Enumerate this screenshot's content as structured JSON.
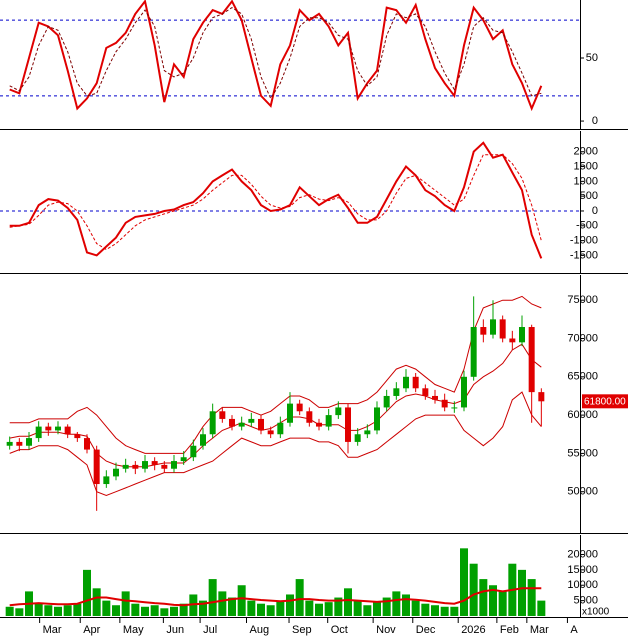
{
  "chart_data": [
    {
      "type": "line",
      "ylim": [
        -5.5,
        96
      ],
      "yticks": [
        0,
        50
      ],
      "reference_lines": [
        20,
        80
      ],
      "series": [
        {
          "color": "#e00000",
          "width": 2,
          "dash": false,
          "values": [
            25,
            22,
            50,
            78,
            75,
            68,
            40,
            10,
            18,
            30,
            58,
            62,
            70,
            85,
            95,
            60,
            15,
            45,
            35,
            65,
            78,
            88,
            85,
            95,
            80,
            50,
            20,
            12,
            45,
            60,
            88,
            80,
            85,
            75,
            60,
            70,
            18,
            30,
            40,
            90,
            88,
            78,
            92,
            65,
            42,
            30,
            20,
            60,
            90,
            80,
            65,
            72,
            45,
            30,
            10,
            28
          ]
        },
        {
          "color": "#800000",
          "width": 1,
          "dash": true,
          "values": [
            28,
            24,
            35,
            60,
            75,
            72,
            55,
            30,
            20,
            22,
            40,
            55,
            65,
            78,
            88,
            75,
            40,
            35,
            38,
            50,
            70,
            82,
            85,
            90,
            85,
            65,
            35,
            18,
            30,
            50,
            75,
            82,
            82,
            78,
            68,
            65,
            40,
            28,
            35,
            68,
            85,
            82,
            85,
            75,
            55,
            38,
            25,
            45,
            75,
            82,
            72,
            70,
            55,
            38,
            20,
            22
          ]
        }
      ]
    },
    {
      "type": "line",
      "ylim": [
        -2060,
        2700
      ],
      "yticks": [
        -1500,
        -1000,
        -500,
        0,
        500,
        1000,
        1500,
        2000
      ],
      "reference_lines": [
        0
      ],
      "series": [
        {
          "color": "#e00000",
          "width": 2,
          "dash": false,
          "values": [
            -500,
            -500,
            -400,
            200,
            400,
            350,
            100,
            -300,
            -1400,
            -1500,
            -1200,
            -900,
            -400,
            -200,
            -150,
            -100,
            0,
            50,
            200,
            300,
            600,
            1000,
            1200,
            1400,
            1000,
            700,
            200,
            0,
            50,
            200,
            800,
            500,
            200,
            400,
            550,
            100,
            -400,
            -400,
            -200,
            400,
            1000,
            1500,
            1200,
            700,
            500,
            200,
            0,
            800,
            2000,
            2300,
            1800,
            1900,
            1300,
            700,
            -800,
            -1600
          ]
        },
        {
          "color": "#e00000",
          "width": 1,
          "dash": true,
          "values": [
            -550,
            -500,
            -450,
            -150,
            200,
            300,
            250,
            0,
            -500,
            -1100,
            -1300,
            -1100,
            -800,
            -500,
            -300,
            -200,
            -100,
            0,
            100,
            200,
            400,
            700,
            950,
            1200,
            1200,
            900,
            500,
            200,
            100,
            150,
            450,
            550,
            400,
            350,
            450,
            300,
            -100,
            -300,
            -300,
            0,
            600,
            1100,
            1200,
            950,
            700,
            450,
            200,
            400,
            1200,
            1900,
            1900,
            1900,
            1600,
            1100,
            200,
            -1000
          ]
        }
      ]
    },
    {
      "type": "candlestick",
      "ylim": [
        44740,
        78290
      ],
      "yticks": [
        50000,
        55000,
        60000,
        65000,
        70000,
        75000
      ],
      "up_color": "#00a000",
      "down_color": "#e00000",
      "open": [
        56000,
        56500,
        56000,
        57000,
        58500,
        58000,
        58500,
        57500,
        57000,
        55500,
        51000,
        52000,
        53000,
        53500,
        53000,
        54000,
        53500,
        53000,
        54000,
        54500,
        56000,
        57500,
        60500,
        59500,
        58500,
        59000,
        59500,
        58000,
        57500,
        59000,
        61500,
        60500,
        59000,
        58500,
        60000,
        61000,
        56500,
        57500,
        58000,
        61000,
        62500,
        63500,
        65000,
        63500,
        62500,
        62000,
        61000,
        61000,
        65000,
        71500,
        70500,
        72500,
        70000,
        69500,
        71500,
        63000
      ],
      "close": [
        56500,
        56000,
        57000,
        58500,
        58000,
        58500,
        57500,
        57000,
        55500,
        51000,
        52000,
        53000,
        53500,
        53000,
        54000,
        53500,
        53000,
        54000,
        54500,
        56000,
        57500,
        60500,
        59500,
        58500,
        59000,
        59500,
        58000,
        57500,
        59000,
        61500,
        60500,
        59000,
        58500,
        60000,
        61000,
        56500,
        57500,
        58000,
        61000,
        62500,
        63500,
        65000,
        63500,
        62500,
        62000,
        61000,
        61000,
        65000,
        71500,
        70500,
        72500,
        70000,
        69500,
        71500,
        63000,
        61800
      ],
      "high": [
        57200,
        57000,
        57800,
        59200,
        59000,
        59200,
        58800,
        57800,
        57500,
        56000,
        52800,
        53800,
        54300,
        54000,
        54800,
        54500,
        54000,
        54800,
        55300,
        56800,
        58300,
        61500,
        61000,
        60000,
        59800,
        60300,
        60000,
        58500,
        59800,
        63000,
        62000,
        61000,
        59500,
        60800,
        61800,
        61500,
        58300,
        58800,
        61800,
        63300,
        64300,
        66000,
        65500,
        64000,
        63300,
        62800,
        61800,
        65800,
        75500,
        72500,
        75000,
        73000,
        71000,
        73000,
        71800,
        63500
      ],
      "low": [
        55500,
        55300,
        55500,
        56500,
        57300,
        57500,
        57000,
        56500,
        55000,
        47500,
        50500,
        51500,
        52500,
        52300,
        52500,
        52800,
        52500,
        52500,
        53500,
        54000,
        55500,
        57000,
        59000,
        58000,
        58000,
        58500,
        57500,
        57000,
        57000,
        58500,
        60000,
        58500,
        58000,
        58000,
        59500,
        55000,
        56000,
        57000,
        57500,
        60500,
        62000,
        63000,
        63000,
        62000,
        61500,
        60500,
        60300,
        60500,
        64500,
        69500,
        70000,
        69500,
        68500,
        69000,
        59000,
        58500
      ],
      "bands": [
        {
          "color": "#cc0000",
          "values": [
            59000,
            59000,
            59000,
            59500,
            59500,
            59500,
            59500,
            60500,
            61000,
            60000,
            58500,
            57000,
            56000,
            55500,
            55000,
            55000,
            55000,
            55000,
            55000,
            56500,
            58500,
            60000,
            61000,
            61000,
            61000,
            60500,
            60000,
            60500,
            61500,
            62500,
            62500,
            62000,
            61000,
            61000,
            61500,
            61500,
            61500,
            62000,
            63000,
            64500,
            66000,
            66500,
            66000,
            65000,
            64000,
            63500,
            63000,
            66000,
            71000,
            74000,
            74500,
            75000,
            75000,
            75500,
            74500,
            74000
          ]
        },
        {
          "color": "#cc0000",
          "values": [
            57000,
            57250,
            57250,
            57750,
            57750,
            57750,
            57500,
            57500,
            57250,
            55000,
            54000,
            53500,
            53250,
            53250,
            53250,
            53500,
            53750,
            53750,
            53750,
            54750,
            56000,
            57000,
            58000,
            58500,
            59000,
            58500,
            58000,
            58250,
            59000,
            59750,
            59750,
            59500,
            58750,
            58750,
            58750,
            58000,
            58000,
            58500,
            59250,
            60500,
            61750,
            62500,
            62750,
            62500,
            62000,
            61750,
            61500,
            62000,
            64000,
            65000,
            65750,
            66750,
            68500,
            69250,
            67250,
            66250
          ]
        },
        {
          "color": "#cc0000",
          "values": [
            55000,
            55500,
            55500,
            56000,
            56000,
            56000,
            55500,
            54500,
            53500,
            50000,
            49500,
            50000,
            50500,
            51000,
            51500,
            52000,
            52500,
            52500,
            52500,
            53000,
            53500,
            54000,
            55000,
            56000,
            57000,
            56500,
            56000,
            56000,
            56500,
            57000,
            57000,
            57000,
            56500,
            56500,
            56000,
            54500,
            54500,
            55000,
            55500,
            56500,
            57500,
            58500,
            59500,
            60000,
            60000,
            60000,
            60000,
            58000,
            57000,
            56000,
            57000,
            58500,
            62000,
            63000,
            60000,
            58500
          ]
        }
      ],
      "price_label": {
        "value": 61800,
        "label": "61800.00"
      }
    },
    {
      "type": "bar",
      "ylim": [
        0,
        26333
      ],
      "yticks": [
        5000,
        10000,
        15000,
        20000
      ],
      "unit_label": "x1000",
      "color": "#00a000",
      "values": [
        3000,
        2500,
        8000,
        4000,
        3500,
        3000,
        3500,
        4000,
        15000,
        9000,
        5000,
        3500,
        8000,
        4000,
        3000,
        3500,
        2500,
        3000,
        4000,
        7000,
        5000,
        12000,
        8000,
        6000,
        10000,
        5000,
        4000,
        3500,
        5000,
        7000,
        12000,
        5000,
        4000,
        4500,
        6000,
        9000,
        5000,
        3500,
        4500,
        6000,
        8000,
        7000,
        5000,
        4000,
        3500,
        3000,
        3000,
        22000,
        17000,
        12000,
        10000,
        8000,
        17000,
        15000,
        12000,
        5000
      ],
      "series": [
        {
          "color": "#e00000",
          "width": 2,
          "dash": false,
          "values": [
            3500,
            3800,
            4000,
            4200,
            4000,
            3800,
            3800,
            4000,
            5000,
            6000,
            6000,
            5500,
            5000,
            4800,
            4500,
            4200,
            4000,
            3600,
            3500,
            3800,
            4000,
            4500,
            5000,
            5500,
            5800,
            5500,
            5200,
            5000,
            4800,
            5000,
            5500,
            5500,
            5200,
            5000,
            5000,
            5200,
            5000,
            4800,
            4600,
            4800,
            5200,
            5500,
            5300,
            5000,
            4600,
            4200,
            4000,
            5000,
            7000,
            8000,
            8500,
            8000,
            8500,
            9000,
            9000,
            9000
          ]
        }
      ],
      "xlim": [
        -1,
        59
      ],
      "xticks": [
        {
          "value": 3.1,
          "label": "Mar"
        },
        {
          "value": 7.3,
          "label": "Apr"
        },
        {
          "value": 11.4,
          "label": "May"
        },
        {
          "value": 15.9,
          "label": "Jun"
        },
        {
          "value": 19.7,
          "label": "Jul"
        },
        {
          "value": 24.5,
          "label": "Aug"
        },
        {
          "value": 28.9,
          "label": "Sep"
        },
        {
          "value": 32.9,
          "label": "Oct"
        },
        {
          "value": 37.6,
          "label": "Nov"
        },
        {
          "value": 41.7,
          "label": "Dec"
        },
        {
          "value": 46.4,
          "label": "2026"
        },
        {
          "value": 50.4,
          "label": "Feb"
        },
        {
          "value": 53.5,
          "label": "Mar"
        },
        {
          "value": 57.7,
          "label": "A"
        }
      ]
    }
  ]
}
